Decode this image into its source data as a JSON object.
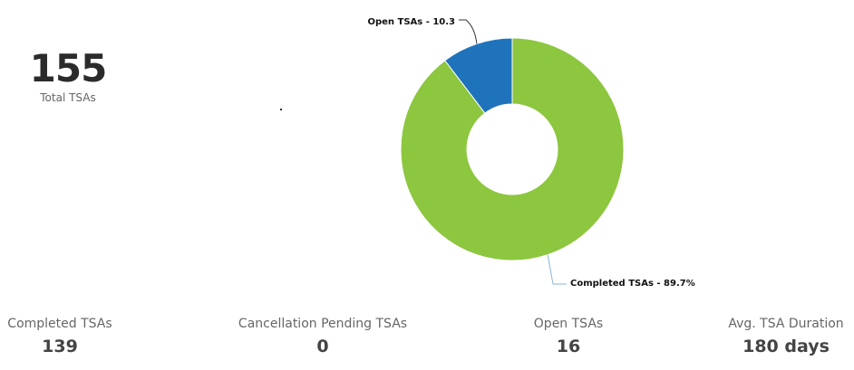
{
  "summary": {
    "total_value": "155",
    "total_label": "Total TSAs"
  },
  "chart_data": {
    "type": "pie",
    "variant": "donut",
    "categories": [
      "Completed TSAs",
      "Open TSAs"
    ],
    "values": [
      89.7,
      10.3
    ],
    "colors": [
      "#8dc63f",
      "#1f73bb"
    ],
    "labels": [
      "Completed TSAs - 89.7%",
      "Open TSAs - 10.3"
    ],
    "legend": "none"
  },
  "kpis": [
    {
      "label": "Completed TSAs",
      "value": "139"
    },
    {
      "label": "Cancellation Pending TSAs",
      "value": "0"
    },
    {
      "label": "Open TSAs",
      "value": "16"
    },
    {
      "label": "Avg. TSA Duration",
      "value": "180 days"
    }
  ]
}
